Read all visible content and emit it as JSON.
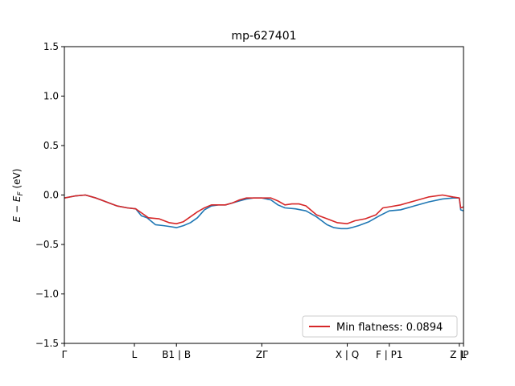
{
  "chart_data": {
    "type": "line",
    "title": "mp-627401",
    "ylabel": "E − E_F (eV)",
    "ylim": [
      -1.5,
      1.5
    ],
    "xlim": [
      0,
      5.7
    ],
    "y_ticks": [
      {
        "value": 1.5,
        "label": "1.5"
      },
      {
        "value": 1.0,
        "label": "1.0"
      },
      {
        "value": 0.5,
        "label": "0.5"
      },
      {
        "value": 0.0,
        "label": "0.0"
      },
      {
        "value": -0.5,
        "label": "−0.5"
      },
      {
        "value": -1.0,
        "label": "−1.0"
      },
      {
        "value": -1.5,
        "label": "−1.5"
      }
    ],
    "x_ticks": [
      {
        "value": 0.0,
        "label": "Γ"
      },
      {
        "value": 1.0,
        "label": "L"
      },
      {
        "value": 1.6,
        "label": "B1 | B"
      },
      {
        "value": 2.82,
        "label": "ZΓ"
      },
      {
        "value": 4.04,
        "label": "X | Q"
      },
      {
        "value": 4.64,
        "label": "F | P1"
      },
      {
        "value": 5.64,
        "label": "Z |P"
      },
      {
        "value": 5.7,
        "label": "L"
      }
    ],
    "series": [
      {
        "color": "#1f77b4",
        "x": [
          0.0,
          0.15,
          0.3,
          0.45,
          0.6,
          0.75,
          0.9,
          1.02,
          1.1,
          1.18,
          1.3,
          1.42,
          1.52,
          1.6,
          1.7,
          1.8,
          1.9,
          2.0,
          2.1,
          2.2,
          2.3,
          2.4,
          2.5,
          2.6,
          2.7,
          2.82,
          2.95,
          3.05,
          3.15,
          3.3,
          3.45,
          3.6,
          3.75,
          3.85,
          3.95,
          4.04,
          4.1,
          4.2,
          4.35,
          4.5,
          4.64,
          4.8,
          5.0,
          5.2,
          5.4,
          5.55,
          5.64,
          5.66,
          5.7
        ],
        "y": [
          -0.03,
          -0.01,
          0.0,
          -0.03,
          -0.07,
          -0.11,
          -0.13,
          -0.14,
          -0.21,
          -0.23,
          -0.3,
          -0.31,
          -0.32,
          -0.33,
          -0.31,
          -0.28,
          -0.23,
          -0.15,
          -0.11,
          -0.1,
          -0.1,
          -0.08,
          -0.06,
          -0.04,
          -0.03,
          -0.03,
          -0.05,
          -0.1,
          -0.13,
          -0.14,
          -0.16,
          -0.22,
          -0.3,
          -0.33,
          -0.34,
          -0.34,
          -0.33,
          -0.31,
          -0.27,
          -0.21,
          -0.16,
          -0.15,
          -0.11,
          -0.07,
          -0.04,
          -0.03,
          -0.03,
          -0.15,
          -0.16
        ]
      },
      {
        "color": "#d62728",
        "name": "Min flatness: 0.0894",
        "x": [
          0.0,
          0.15,
          0.3,
          0.45,
          0.6,
          0.75,
          0.9,
          1.02,
          1.1,
          1.2,
          1.35,
          1.5,
          1.6,
          1.7,
          1.8,
          1.9,
          2.0,
          2.1,
          2.2,
          2.3,
          2.4,
          2.5,
          2.6,
          2.7,
          2.82,
          2.95,
          3.05,
          3.15,
          3.25,
          3.35,
          3.45,
          3.6,
          3.75,
          3.9,
          4.04,
          4.15,
          4.3,
          4.45,
          4.55,
          4.64,
          4.8,
          5.0,
          5.2,
          5.4,
          5.55,
          5.64,
          5.66,
          5.7
        ],
        "y": [
          -0.03,
          -0.01,
          0.0,
          -0.03,
          -0.07,
          -0.11,
          -0.13,
          -0.14,
          -0.18,
          -0.23,
          -0.24,
          -0.28,
          -0.29,
          -0.27,
          -0.22,
          -0.17,
          -0.13,
          -0.1,
          -0.1,
          -0.1,
          -0.08,
          -0.05,
          -0.03,
          -0.03,
          -0.03,
          -0.03,
          -0.06,
          -0.1,
          -0.09,
          -0.09,
          -0.11,
          -0.2,
          -0.24,
          -0.28,
          -0.29,
          -0.26,
          -0.24,
          -0.2,
          -0.13,
          -0.12,
          -0.1,
          -0.06,
          -0.02,
          0.0,
          -0.02,
          -0.03,
          -0.13,
          -0.12
        ]
      }
    ],
    "legend": {
      "placement": "bottom-right",
      "label": "Min flatness: 0.0894"
    },
    "grid": false
  }
}
